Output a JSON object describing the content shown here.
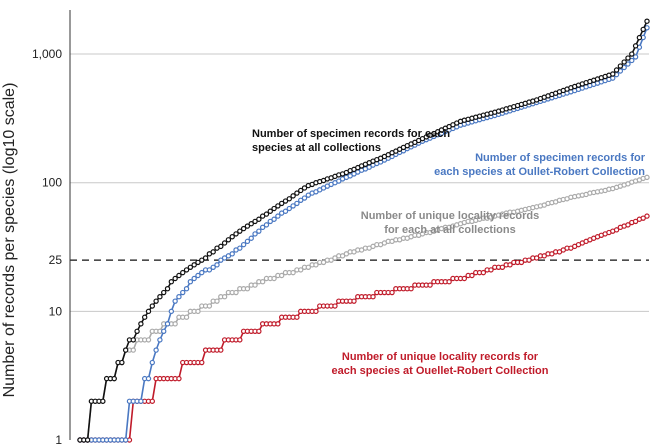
{
  "chart_data": {
    "type": "line",
    "ylabel": "Number of records per species (log10 scale)",
    "xlabel": "",
    "yscale": "log10",
    "ylim": [
      1,
      2200
    ],
    "yticks": [
      {
        "value": 1,
        "label": "1"
      },
      {
        "value": 10,
        "label": "10"
      },
      {
        "value": 25,
        "label": "25"
      },
      {
        "value": 100,
        "label": "100"
      },
      {
        "value": 1000,
        "label": "1,000"
      }
    ],
    "gridlines": [
      10,
      100,
      1000
    ],
    "reference_line": {
      "value": 25,
      "style": "dashed"
    },
    "points_per_series": 150,
    "series": [
      {
        "name": "Number of specimen records for each species at all collections",
        "color": "#111111",
        "x": [
          0,
          5,
          8,
          12,
          18,
          25,
          32,
          40,
          50,
          60,
          70,
          80,
          90,
          100,
          110,
          120,
          130,
          140,
          145,
          149
        ],
        "values": [
          1,
          2,
          3,
          5,
          10,
          18,
          25,
          38,
          60,
          95,
          120,
          160,
          220,
          300,
          360,
          440,
          560,
          700,
          1000,
          1800
        ]
      },
      {
        "name": "Number of specimen records for each species at Oullet-Robert Collection",
        "color": "#4a78c2",
        "x": [
          0,
          10,
          15,
          20,
          25,
          30,
          40,
          50,
          60,
          70,
          80,
          90,
          100,
          110,
          120,
          130,
          140,
          146,
          149
        ],
        "values": [
          1,
          1,
          2,
          5,
          12,
          18,
          28,
          50,
          80,
          110,
          150,
          210,
          280,
          340,
          420,
          520,
          650,
          950,
          1600
        ]
      },
      {
        "name": "Number of unique locality records for each at all collections",
        "color": "#aaaaaa",
        "x": [
          0,
          5,
          8,
          12,
          20,
          30,
          40,
          50,
          60,
          70,
          80,
          90,
          100,
          110,
          120,
          130,
          140,
          149
        ],
        "values": [
          1,
          2,
          3,
          5,
          7,
          10,
          14,
          18,
          22,
          28,
          34,
          40,
          48,
          56,
          65,
          78,
          90,
          110
        ]
      },
      {
        "name": "Number of unique locality records for each species at Ouellet-Robert Collection",
        "color": "#c01b2a",
        "x": [
          0,
          10,
          16,
          22,
          30,
          40,
          50,
          60,
          70,
          80,
          90,
          100,
          110,
          120,
          130,
          140,
          149
        ],
        "values": [
          1,
          1,
          2,
          3,
          4,
          6,
          8,
          10,
          12,
          14,
          16,
          18,
          22,
          26,
          32,
          42,
          55
        ]
      }
    ],
    "annotations": [
      {
        "text": [
          "Number of specimen records for each",
          "species at all collections"
        ],
        "color": "#111111",
        "series": 0,
        "anchor": "start"
      },
      {
        "text": [
          "Number of specimen records for",
          "each species at Oullet-Robert Collection"
        ],
        "color": "#4a78c2",
        "series": 1,
        "anchor": "end"
      },
      {
        "text": [
          "Number of unique locality records",
          "for each at all collections"
        ],
        "color": "#8a8a8a",
        "series": 2,
        "anchor": "middle"
      },
      {
        "text": [
          "Number of unique locality records for",
          "each species at Ouellet-Robert Collection"
        ],
        "color": "#c01b2a",
        "series": 3,
        "anchor": "middle"
      }
    ]
  }
}
